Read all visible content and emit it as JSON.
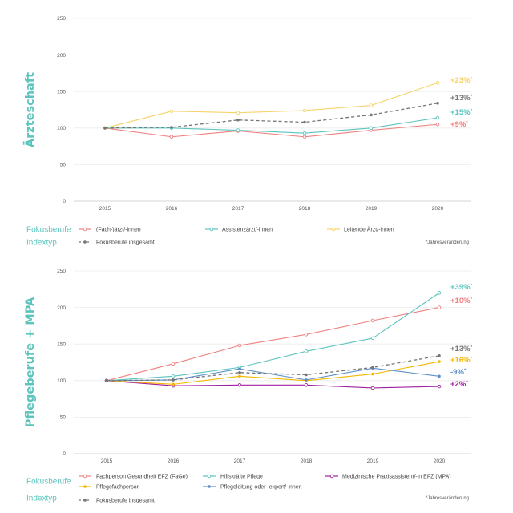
{
  "chart_data": [
    {
      "type": "line",
      "title": "Ärzteschaft",
      "title_color": "#5cc4bd",
      "categories": [
        "2015",
        "2016",
        "2017",
        "2018",
        "2019",
        "2020"
      ],
      "ylim": [
        0,
        250
      ],
      "yticks": [
        "0",
        "50",
        "100",
        "150",
        "200",
        "250"
      ],
      "legend_heading": "Fokusberufe",
      "index_heading": "Indextyp",
      "note": "*Jahresveränderung",
      "series": [
        {
          "name": "(Fach-)ärzt/-innen",
          "color": "#f08080",
          "marker": "circle",
          "dashed": false,
          "values": [
            100,
            88,
            96,
            88,
            97,
            105
          ],
          "change": "+9%"
        },
        {
          "name": "Assistenzärzt/-innen",
          "color": "#5cc4bd",
          "marker": "circle",
          "dashed": false,
          "values": [
            100,
            100,
            97,
            93,
            100,
            114
          ],
          "change": "+15%"
        },
        {
          "name": "Leitende Ärzt/-innen",
          "color": "#f7d36b",
          "marker": "circle",
          "dashed": false,
          "values": [
            100,
            123,
            121,
            124,
            131,
            162
          ],
          "change": "+23%"
        },
        {
          "name": "Fokusberufe insgesamt",
          "color": "#757575",
          "marker": "dot",
          "dashed": true,
          "values": [
            100,
            101,
            111,
            108,
            118,
            134
          ],
          "change": "+13%",
          "index": true
        }
      ]
    },
    {
      "type": "line",
      "title": "Pflegeberufe + MPA",
      "title_color": "#5cc4bd",
      "categories": [
        "2015",
        "2016",
        "2017",
        "2018",
        "2019",
        "2020"
      ],
      "ylim": [
        0,
        250
      ],
      "yticks": [
        "0",
        "50",
        "100",
        "150",
        "200",
        "250"
      ],
      "legend_heading": "Fokusberufe",
      "index_heading": "Indextyp",
      "note": "*Jahresveränderung",
      "series": [
        {
          "name": "Fachperson Gesundheit EFZ (FaGe)",
          "color": "#f08080",
          "marker": "circle",
          "dashed": false,
          "values": [
            100,
            123,
            148,
            163,
            182,
            200
          ],
          "change": "+10%"
        },
        {
          "name": "Hilfskräfte Pflege",
          "color": "#5cc4bd",
          "marker": "circle",
          "dashed": false,
          "values": [
            100,
            106,
            118,
            140,
            158,
            220
          ],
          "change": "+39%"
        },
        {
          "name": "Medizinische Praxisassistent/-in EFZ (MPA)",
          "color": "#a020a0",
          "marker": "circle",
          "dashed": false,
          "values": [
            100,
            93,
            94,
            94,
            90,
            92
          ],
          "change": "+2%"
        },
        {
          "name": "Pflegefachperson",
          "color": "#f5b800",
          "marker": "dot",
          "dashed": false,
          "values": [
            100,
            95,
            106,
            100,
            109,
            126
          ],
          "change": "+16%"
        },
        {
          "name": "Pflegeleitung oder -expert/-innen",
          "color": "#5b8fc7",
          "marker": "dot",
          "dashed": false,
          "values": [
            100,
            101,
            116,
            101,
            117,
            106
          ],
          "change": "-9%"
        },
        {
          "name": "Fokusberufe insgesamt",
          "color": "#757575",
          "marker": "dot",
          "dashed": true,
          "values": [
            100,
            101,
            111,
            108,
            118,
            134
          ],
          "change": "+13%",
          "index": true
        }
      ]
    }
  ]
}
